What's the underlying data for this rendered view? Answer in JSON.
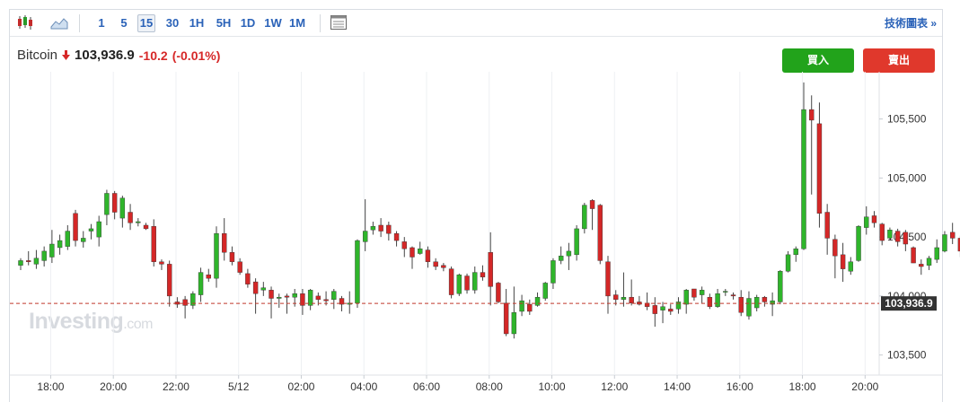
{
  "toolbar": {
    "icons": [
      "candlestick-chart-icon",
      "area-chart-icon",
      "settings-panel-icon"
    ],
    "timeframes": [
      "1",
      "5",
      "15",
      "30",
      "1H",
      "5H",
      "1D",
      "1W",
      "1M"
    ],
    "active_timeframe": "15",
    "tech_chart_label": "技術圖表 »"
  },
  "quote": {
    "name": "Bitcoin",
    "price": "103,936.9",
    "change": "-10.2",
    "change_pct": "(-0.01%)"
  },
  "buttons": {
    "buy": "買入",
    "sell": "賣出"
  },
  "watermark": {
    "brand": "Investing",
    "suffix": ".com"
  },
  "colors": {
    "up": "#2fb52b",
    "down": "#d42727",
    "accent": "#2a62b8",
    "buy": "#22a31b",
    "sell": "#e0382c",
    "price_tag": "#333333"
  },
  "chart_data": {
    "type": "candlestick",
    "title": "",
    "xlabel": "",
    "ylabel": "",
    "ylim": [
      103330,
      105900
    ],
    "y_ticks": [
      105500,
      105000,
      104500,
      104000,
      103500
    ],
    "y_tick_labels": [
      "105,500",
      "105,000",
      "104,500",
      "104,000",
      "103,500"
    ],
    "x_tick_labels": [
      "18:00",
      "20:00",
      "22:00",
      "5/12",
      "02:00",
      "04:00",
      "06:00",
      "08:00",
      "10:00",
      "12:00",
      "14:00",
      "16:00",
      "18:00",
      "20:00"
    ],
    "current_price": 103936.9,
    "current_price_label": "103,936.9",
    "grid": "vertical",
    "candles": [
      [
        104260,
        104300,
        104220,
        104320
      ],
      [
        104300,
        104290,
        104260,
        104380
      ],
      [
        104270,
        104320,
        104230,
        104390
      ],
      [
        104300,
        104380,
        104250,
        104420
      ],
      [
        104330,
        104440,
        104280,
        104560
      ],
      [
        104410,
        104470,
        104350,
        104520
      ],
      [
        104420,
        104550,
        104390,
        104600
      ],
      [
        104700,
        104470,
        104420,
        104730
      ],
      [
        104460,
        104490,
        104410,
        104550
      ],
      [
        104550,
        104570,
        104480,
        104610
      ],
      [
        104500,
        104630,
        104420,
        104680
      ],
      [
        104690,
        104870,
        104600,
        104900
      ],
      [
        104870,
        104710,
        104650,
        104890
      ],
      [
        104660,
        104830,
        104580,
        104850
      ],
      [
        104710,
        104620,
        104560,
        104780
      ],
      [
        104620,
        104630,
        104590,
        104660
      ],
      [
        104600,
        104570,
        104560,
        104620
      ],
      [
        104590,
        104290,
        104250,
        104650
      ],
      [
        104290,
        104270,
        104220,
        104310
      ],
      [
        104270,
        104000,
        103910,
        104300
      ],
      [
        103950,
        103930,
        103900,
        103990
      ],
      [
        103970,
        103920,
        103810,
        104000
      ],
      [
        103920,
        104020,
        103890,
        104040
      ],
      [
        104010,
        104200,
        103950,
        104240
      ],
      [
        104180,
        104150,
        104120,
        104230
      ],
      [
        104150,
        104530,
        104070,
        104590
      ],
      [
        104530,
        104370,
        104300,
        104660
      ],
      [
        104370,
        104290,
        104260,
        104420
      ],
      [
        104290,
        104200,
        104180,
        104320
      ],
      [
        104190,
        104100,
        104070,
        104230
      ],
      [
        104120,
        104020,
        103850,
        104150
      ],
      [
        104050,
        104070,
        104000,
        104120
      ],
      [
        104050,
        103980,
        103810,
        104080
      ],
      [
        103980,
        103990,
        103900,
        104020
      ],
      [
        104000,
        103990,
        103850,
        104020
      ],
      [
        103990,
        104020,
        103910,
        104060
      ],
      [
        104020,
        103920,
        103840,
        104060
      ],
      [
        103920,
        104050,
        103880,
        104060
      ],
      [
        104000,
        103970,
        103920,
        104030
      ],
      [
        103970,
        103960,
        103920,
        104040
      ],
      [
        103970,
        104040,
        103890,
        104060
      ],
      [
        103980,
        103930,
        103870,
        104000
      ],
      [
        103930,
        103940,
        103850,
        104040
      ],
      [
        103940,
        104470,
        103900,
        104480
      ],
      [
        104460,
        104550,
        104380,
        104820
      ],
      [
        104560,
        104590,
        104520,
        104630
      ],
      [
        104600,
        104550,
        104500,
        104660
      ],
      [
        104600,
        104530,
        104470,
        104630
      ],
      [
        104530,
        104470,
        104420,
        104550
      ],
      [
        104460,
        104400,
        104330,
        104500
      ],
      [
        104410,
        104330,
        104230,
        104420
      ],
      [
        104360,
        104400,
        104350,
        104460
      ],
      [
        104390,
        104290,
        104240,
        104420
      ],
      [
        104290,
        104250,
        104220,
        104320
      ],
      [
        104260,
        104240,
        104210,
        104280
      ],
      [
        104230,
        104010,
        103980,
        104250
      ],
      [
        104020,
        104180,
        104000,
        104190
      ],
      [
        104170,
        104050,
        104020,
        104190
      ],
      [
        104050,
        104200,
        104020,
        104250
      ],
      [
        104200,
        104160,
        104130,
        104260
      ],
      [
        104370,
        104080,
        103920,
        104540
      ],
      [
        104110,
        103950,
        103940,
        104120
      ],
      [
        103940,
        103680,
        103660,
        104060
      ],
      [
        103680,
        103860,
        103640,
        104080
      ],
      [
        103870,
        103960,
        103830,
        104010
      ],
      [
        103930,
        103870,
        103840,
        103970
      ],
      [
        103920,
        103990,
        103910,
        104030
      ],
      [
        103980,
        104110,
        103960,
        104120
      ],
      [
        104110,
        104300,
        104060,
        104320
      ],
      [
        104300,
        104340,
        104270,
        104420
      ],
      [
        104340,
        104380,
        104220,
        104450
      ],
      [
        104350,
        104570,
        104300,
        104600
      ],
      [
        104570,
        104770,
        104530,
        104790
      ],
      [
        104810,
        104740,
        104560,
        104820
      ],
      [
        104770,
        104300,
        104270,
        104780
      ],
      [
        104290,
        104000,
        103850,
        104340
      ],
      [
        104010,
        103970,
        103920,
        104050
      ],
      [
        103970,
        103990,
        103910,
        104200
      ],
      [
        103990,
        103940,
        103920,
        104140
      ],
      [
        103950,
        103930,
        103920,
        104000
      ],
      [
        103940,
        103910,
        103880,
        104030
      ],
      [
        103920,
        103850,
        103740,
        103990
      ],
      [
        103880,
        103910,
        103770,
        103950
      ],
      [
        103890,
        103870,
        103840,
        103930
      ],
      [
        103890,
        103950,
        103850,
        103990
      ],
      [
        103930,
        104050,
        103850,
        104060
      ],
      [
        104060,
        103990,
        103960,
        104060
      ],
      [
        104010,
        104050,
        103940,
        104080
      ],
      [
        103990,
        103910,
        103890,
        104020
      ],
      [
        103910,
        104020,
        103900,
        104060
      ],
      [
        104040,
        104040,
        104000,
        104060
      ],
      [
        104010,
        104000,
        103970,
        104030
      ],
      [
        103990,
        103860,
        103830,
        104050
      ],
      [
        103830,
        103980,
        103800,
        104040
      ],
      [
        103900,
        103990,
        103870,
        104010
      ],
      [
        103990,
        103950,
        103910,
        104000
      ],
      [
        103930,
        103960,
        103830,
        104030
      ],
      [
        103950,
        104210,
        103930,
        104220
      ],
      [
        104210,
        104350,
        104200,
        104380
      ],
      [
        104350,
        104400,
        104290,
        104420
      ],
      [
        104400,
        105580,
        104390,
        105810
      ],
      [
        105580,
        105490,
        104860,
        105700
      ],
      [
        105460,
        104700,
        104580,
        105640
      ],
      [
        104710,
        104490,
        104350,
        104780
      ],
      [
        104480,
        104340,
        104150,
        104520
      ],
      [
        104350,
        104230,
        104120,
        104450
      ],
      [
        104210,
        104290,
        104180,
        104330
      ],
      [
        104300,
        104590,
        104290,
        104600
      ],
      [
        104580,
        104670,
        104520,
        104760
      ],
      [
        104680,
        104620,
        104580,
        104720
      ],
      [
        104610,
        104470,
        104430,
        104620
      ],
      [
        104490,
        104560,
        104470,
        104580
      ],
      [
        104550,
        104460,
        104420,
        104570
      ],
      [
        104540,
        104440,
        104380,
        104560
      ],
      [
        104410,
        104280,
        104280,
        104420
      ],
      [
        104270,
        104250,
        104180,
        104310
      ],
      [
        104260,
        104320,
        104220,
        104340
      ],
      [
        104310,
        104410,
        104280,
        104480
      ],
      [
        104380,
        104520,
        104370,
        104550
      ],
      [
        104540,
        104490,
        104440,
        104620
      ],
      [
        104490,
        104380,
        104330,
        104510
      ],
      [
        104390,
        104180,
        104140,
        104430
      ],
      [
        104180,
        103870,
        103710,
        104200
      ],
      [
        103880,
        103980,
        103830,
        104020
      ],
      [
        103990,
        104040,
        103950,
        104060
      ],
      [
        104020,
        104100,
        104000,
        104110
      ]
    ]
  }
}
